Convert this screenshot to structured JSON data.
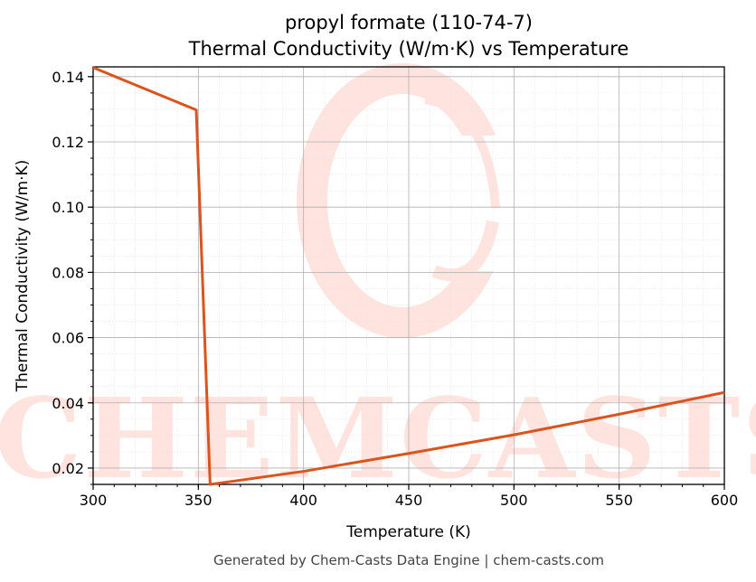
{
  "chart_data": {
    "type": "line",
    "title_line1": "propyl formate (110-74-7)",
    "title_line2": "Thermal Conductivity (W/m·K) vs Temperature",
    "xlabel": "Temperature (K)",
    "ylabel": "Thermal Conductivity (W/m·K)",
    "xlim": [
      300,
      600
    ],
    "ylim": [
      0.015,
      0.143
    ],
    "x_ticks": [
      300,
      350,
      400,
      450,
      500,
      550,
      600
    ],
    "x_tick_labels": [
      "300",
      "350",
      "400",
      "450",
      "500",
      "550",
      "600"
    ],
    "y_ticks": [
      0.02,
      0.04,
      0.06,
      0.08,
      0.1,
      0.12,
      0.14
    ],
    "y_tick_labels": [
      "0.02",
      "0.04",
      "0.06",
      "0.08",
      "0.10",
      "0.12",
      "0.14"
    ],
    "grid": true,
    "line_color": "#d9541e",
    "series": [
      {
        "x": [
          300,
          349,
          355.6,
          400,
          450,
          500,
          550,
          600
        ],
        "y": [
          0.1428,
          0.1298,
          0.015,
          0.019,
          0.0245,
          0.0302,
          0.0365,
          0.0432
        ]
      }
    ]
  },
  "watermark": {
    "text": "CHEMCASTS",
    "color": "#ffe3de"
  },
  "footer": "Generated by Chem-Casts Data Engine | chem-casts.com"
}
